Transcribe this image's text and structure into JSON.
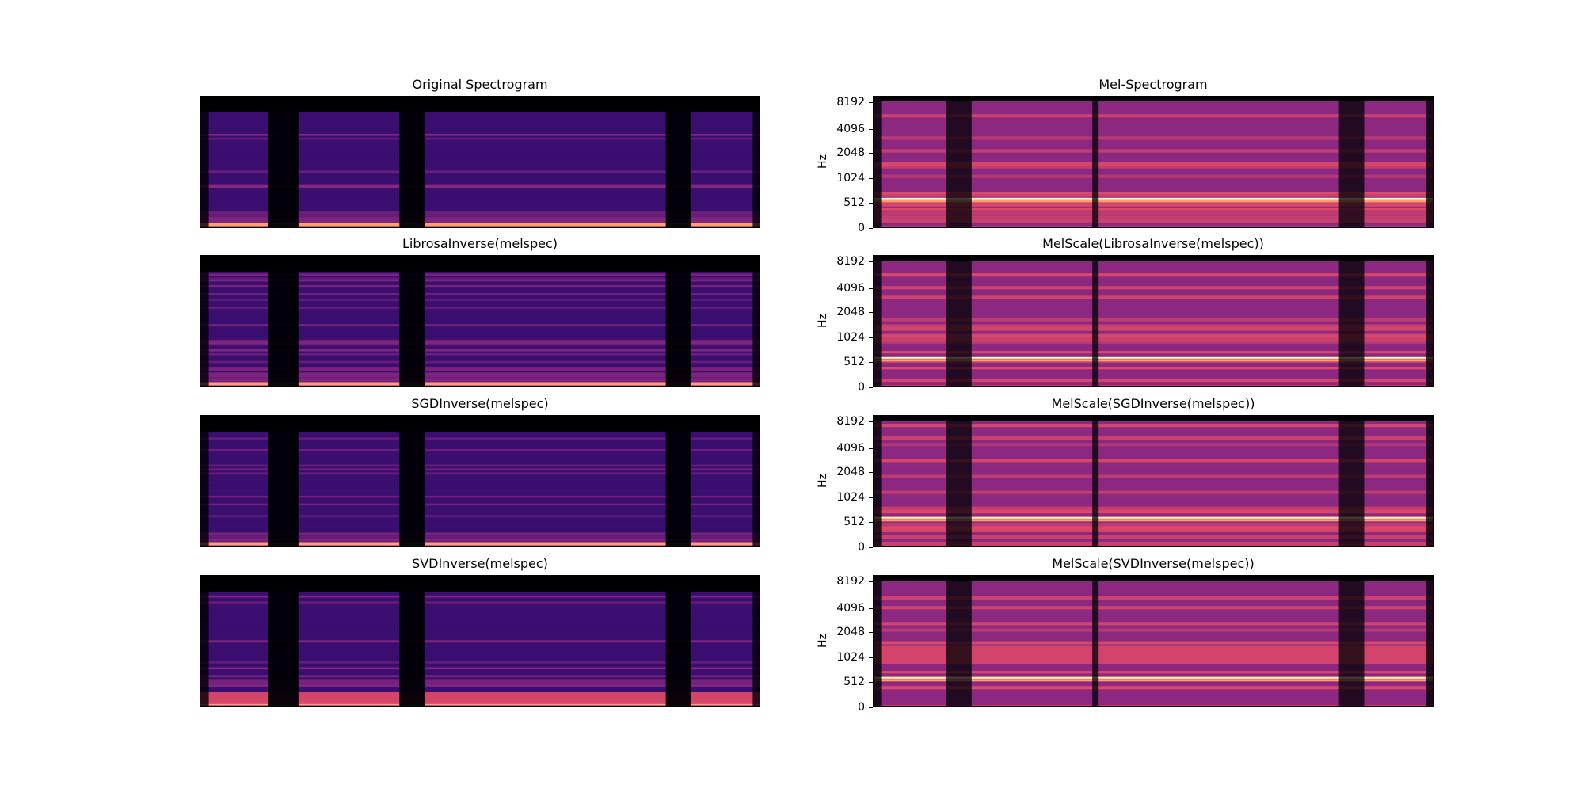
{
  "chart_data": [
    {
      "type": "heatmap",
      "title": "Original Spectrogram",
      "scale": "linear",
      "colormap": "magma",
      "ylabel": "",
      "yticks": []
    },
    {
      "type": "heatmap",
      "title": "Mel-Spectrogram",
      "scale": "mel",
      "colormap": "magma",
      "ylabel": "Hz",
      "yticks": [
        "0",
        "512",
        "1024",
        "2048",
        "4096",
        "8192"
      ]
    },
    {
      "type": "heatmap",
      "title": "LibrosaInverse(melspec)",
      "scale": "linear",
      "colormap": "magma",
      "ylabel": "",
      "yticks": []
    },
    {
      "type": "heatmap",
      "title": "MelScale(LibrosaInverse(melspec))",
      "scale": "mel",
      "colormap": "magma",
      "ylabel": "Hz",
      "yticks": [
        "0",
        "512",
        "1024",
        "2048",
        "4096",
        "8192"
      ]
    },
    {
      "type": "heatmap",
      "title": "SGDInverse(melspec)",
      "scale": "linear",
      "colormap": "magma",
      "ylabel": "",
      "yticks": []
    },
    {
      "type": "heatmap",
      "title": "MelScale(SGDInverse(melspec))",
      "scale": "mel",
      "colormap": "magma",
      "ylabel": "Hz",
      "yticks": [
        "0",
        "512",
        "1024",
        "2048",
        "4096",
        "8192"
      ]
    },
    {
      "type": "heatmap",
      "title": "SVDInverse(melspec)",
      "scale": "linear",
      "colormap": "magma",
      "ylabel": "",
      "yticks": []
    },
    {
      "type": "heatmap",
      "title": "MelScale(SVDInverse(melspec))",
      "scale": "mel",
      "colormap": "magma",
      "ylabel": "Hz",
      "yticks": [
        "0",
        "512",
        "1024",
        "2048",
        "4096",
        "8192"
      ]
    }
  ],
  "colors": {
    "silence": "#000004",
    "low": "#3b0f70",
    "mid": "#8c2981",
    "high": "#de4968",
    "peak": "#fe9f6d",
    "hot": "#fcfdbf"
  }
}
